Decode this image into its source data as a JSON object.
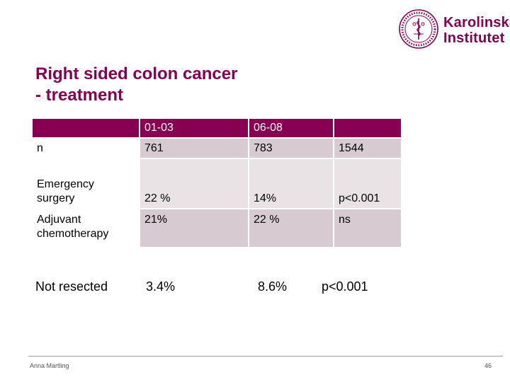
{
  "logo": {
    "line1": "Karolinska",
    "line2": "Institutet",
    "brand_color": "#870052",
    "icon": "karolinska-seal-icon"
  },
  "slide": {
    "title_line1": "Right sided colon cancer",
    "title_line2": "- treatment"
  },
  "table": {
    "headers": [
      "",
      "01-03",
      "06-08",
      ""
    ],
    "rows": [
      [
        "n",
        "761",
        "783",
        "1544"
      ],
      [
        "Emergency surgery",
        "22 %",
        "14%",
        "p<0.001"
      ],
      [
        "Adjuvant chemotherapy",
        "21%",
        "22 %",
        "ns"
      ]
    ]
  },
  "extra_row": [
    "Not resected",
    "3.4%",
    "8.6%",
    "p<0.001"
  ],
  "footer": {
    "author": "Anna Martling",
    "page_number": "46"
  },
  "colors": {
    "header_bg": "#870052",
    "row_dark": "#d7cbd1",
    "row_light": "#eae3e6"
  }
}
